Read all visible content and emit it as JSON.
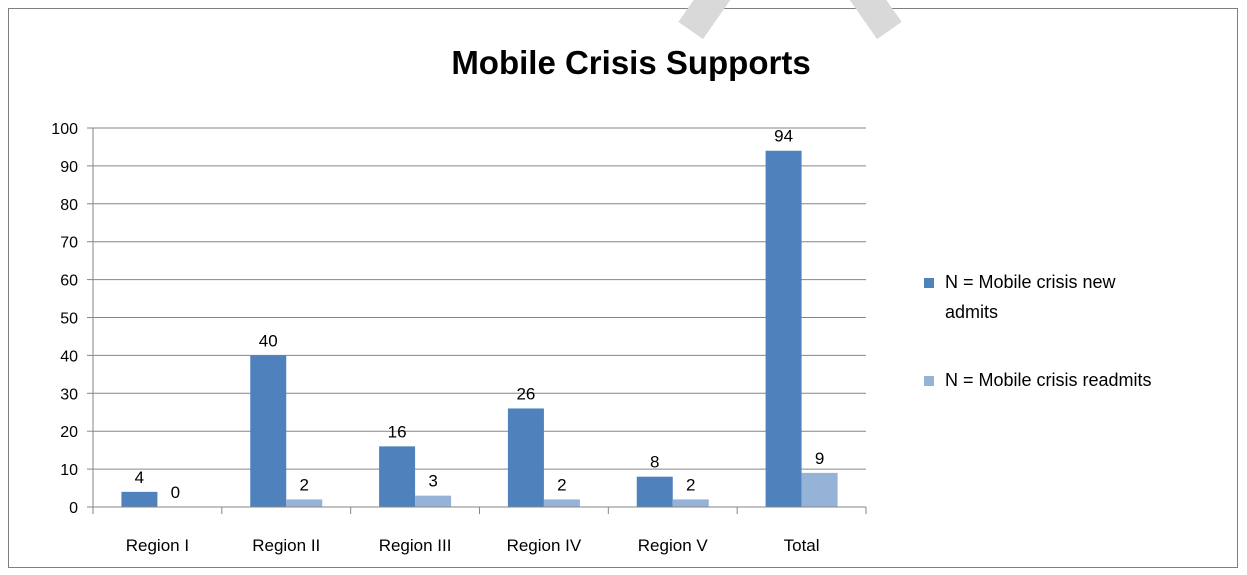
{
  "chart_data": {
    "type": "bar",
    "title": "Mobile Crisis Supports",
    "categories": [
      "Region I",
      "Region II",
      "Region III",
      "Region IV",
      "Region V",
      "Total"
    ],
    "series": [
      {
        "name": "N = Mobile crisis new admits",
        "values": [
          4,
          40,
          16,
          26,
          8,
          94
        ],
        "color": "#4f81bd"
      },
      {
        "name": "N = Mobile crisis readmits",
        "values": [
          0,
          2,
          3,
          2,
          2,
          9
        ],
        "color": "#95b3d7"
      }
    ],
    "ylim": [
      0,
      100
    ],
    "yticks": [
      0,
      10,
      20,
      30,
      40,
      50,
      60,
      70,
      80,
      90,
      100
    ],
    "grid": true,
    "legend_position": "right",
    "data_labels": true
  }
}
